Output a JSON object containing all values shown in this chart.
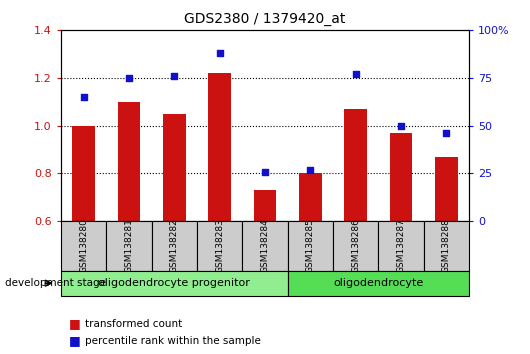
{
  "title": "GDS2380 / 1379420_at",
  "samples": [
    "GSM138280",
    "GSM138281",
    "GSM138282",
    "GSM138283",
    "GSM138284",
    "GSM138285",
    "GSM138286",
    "GSM138287",
    "GSM138288"
  ],
  "red_values": [
    1.0,
    1.1,
    1.05,
    1.22,
    0.73,
    0.8,
    1.07,
    0.97,
    0.87
  ],
  "blue_values": [
    65,
    75,
    76,
    88,
    26,
    27,
    77,
    50,
    46
  ],
  "ylim_left": [
    0.6,
    1.4
  ],
  "ylim_right": [
    0,
    100
  ],
  "yticks_left": [
    0.6,
    0.8,
    1.0,
    1.2,
    1.4
  ],
  "yticks_right": [
    0,
    25,
    50,
    75,
    100
  ],
  "ytick_labels_right": [
    "0",
    "25",
    "50",
    "75",
    "100%"
  ],
  "bar_color": "#cc1111",
  "dot_color": "#1111cc",
  "bar_width": 0.5,
  "groups": [
    {
      "label": "oligodendrocyte progenitor",
      "indices": [
        0,
        1,
        2,
        3,
        4
      ],
      "color": "#90ee90"
    },
    {
      "label": "oligodendrocyte",
      "indices": [
        5,
        6,
        7,
        8
      ],
      "color": "#55dd55"
    }
  ],
  "sample_box_color": "#cccccc",
  "legend_red_label": "transformed count",
  "legend_blue_label": "percentile rank within the sample",
  "dev_stage_label": "development stage",
  "grid_lines": [
    0.8,
    1.0,
    1.2
  ]
}
